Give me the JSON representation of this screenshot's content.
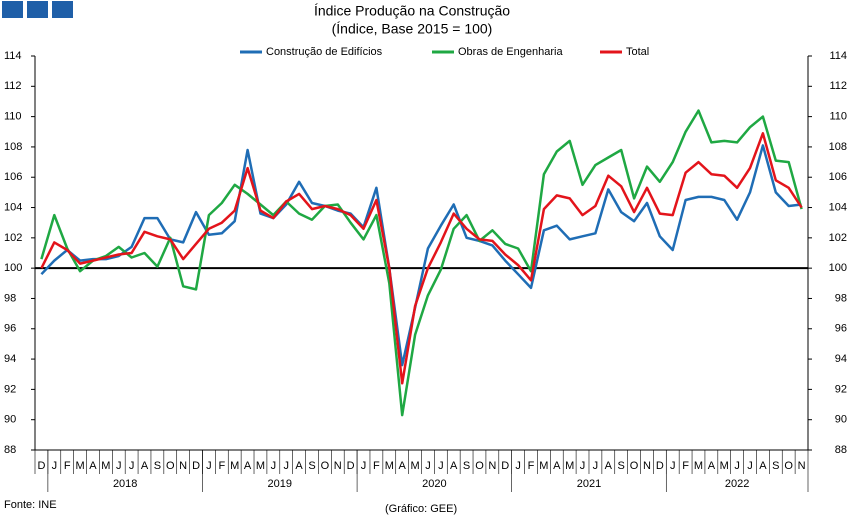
{
  "chart_data": {
    "type": "line",
    "title": "Índice Produção na Construção",
    "subtitle": "(Índice, Base 2015 = 100)",
    "source": "Fonte: INE",
    "credit": "(Gráfico: GEE)",
    "categories": [
      "D",
      "J",
      "F",
      "M",
      "A",
      "M",
      "J",
      "J",
      "A",
      "S",
      "O",
      "N",
      "D",
      "J",
      "F",
      "M",
      "A",
      "M",
      "J",
      "J",
      "A",
      "S",
      "O",
      "N",
      "D",
      "J",
      "F",
      "M",
      "A",
      "M",
      "J",
      "J",
      "A",
      "S",
      "O",
      "N",
      "D",
      "J",
      "F",
      "M",
      "A",
      "M",
      "J",
      "J",
      "A",
      "S",
      "O",
      "N",
      "D",
      "J",
      "F",
      "M",
      "A",
      "M",
      "J",
      "J",
      "A",
      "S",
      "O",
      "N"
    ],
    "years": [
      "2018",
      "2019",
      "2020",
      "2021",
      "2022"
    ],
    "series": [
      {
        "name": "Construção de Edifícios",
        "color": "#1f6db5",
        "values": [
          99.6,
          100.5,
          101.2,
          100.5,
          100.6,
          100.6,
          100.8,
          101.4,
          103.3,
          103.3,
          101.9,
          101.7,
          103.7,
          102.2,
          102.3,
          103.1,
          107.8,
          103.6,
          103.3,
          104.2,
          105.7,
          104.3,
          104.1,
          103.8,
          103.6,
          102.7,
          105.3,
          100.0,
          93.6,
          97.4,
          101.3,
          102.8,
          104.2,
          102.0,
          101.8,
          101.5,
          100.5,
          99.6,
          98.7,
          102.5,
          102.8,
          101.9,
          102.1,
          102.3,
          105.2,
          103.7,
          103.1,
          104.3,
          102.1,
          101.2,
          104.5,
          104.7,
          104.7,
          104.5,
          103.2,
          105.0,
          108.1,
          105.0,
          104.1,
          104.2
        ]
      },
      {
        "name": "Obras de Engenharia",
        "color": "#1fa843",
        "values": [
          100.6,
          103.5,
          101.3,
          99.8,
          100.5,
          100.8,
          101.4,
          100.7,
          101.0,
          100.1,
          102.0,
          98.8,
          98.6,
          103.5,
          104.3,
          105.5,
          104.9,
          104.2,
          103.5,
          104.4,
          103.6,
          103.2,
          104.1,
          104.2,
          103.0,
          101.9,
          103.5,
          99.0,
          90.3,
          95.6,
          98.2,
          99.9,
          102.6,
          103.5,
          101.8,
          102.5,
          101.6,
          101.3,
          99.8,
          106.2,
          107.7,
          108.4,
          105.5,
          106.8,
          107.3,
          107.8,
          104.6,
          106.7,
          105.7,
          107.0,
          109.0,
          110.4,
          108.3,
          108.4,
          108.3,
          109.3,
          110.0,
          107.1,
          107.0,
          103.9
        ]
      },
      {
        "name": "Total",
        "color": "#e3141b",
        "values": [
          100.0,
          101.7,
          101.2,
          100.3,
          100.5,
          100.7,
          100.9,
          101.0,
          102.4,
          102.1,
          101.9,
          100.6,
          101.6,
          102.6,
          103.0,
          103.8,
          106.6,
          103.8,
          103.3,
          104.4,
          104.9,
          103.9,
          104.1,
          103.9,
          103.5,
          102.6,
          104.5,
          100.0,
          92.4,
          97.5,
          100.0,
          101.7,
          103.6,
          102.6,
          101.9,
          101.8,
          100.9,
          100.2,
          99.2,
          103.9,
          104.8,
          104.6,
          103.5,
          104.1,
          106.1,
          105.4,
          103.7,
          105.3,
          103.6,
          103.5,
          106.3,
          107.0,
          106.2,
          106.1,
          105.3,
          106.6,
          108.9,
          105.8,
          105.3,
          104.0
        ]
      }
    ],
    "reference_line": 100,
    "ylim": [
      88,
      114
    ],
    "yticks": [
      88,
      90,
      92,
      94,
      96,
      98,
      100,
      102,
      104,
      106,
      108,
      110,
      112,
      114
    ],
    "right_axis": true
  }
}
